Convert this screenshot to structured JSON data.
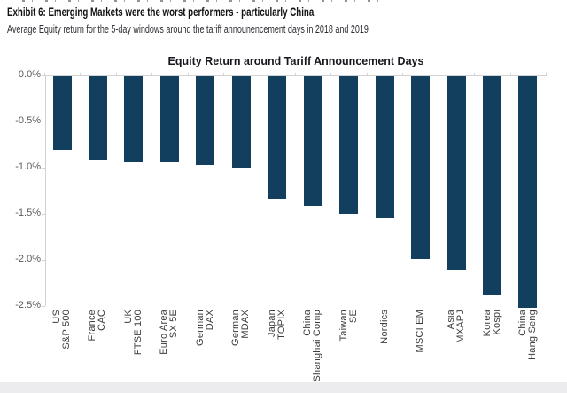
{
  "header": {
    "title": "Exhibit 6: Emerging Markets were the worst performers - particularly China",
    "subtitle": "Average Equity return for the 5-day windows around the tariff announencement days in 2018 and 2019"
  },
  "chart_data": {
    "type": "bar",
    "title": "Equity Return around Tariff Announcement Days",
    "categories": [
      [
        "US",
        "S&P 500"
      ],
      [
        "France",
        "CAC"
      ],
      [
        "UK",
        "FTSE 100"
      ],
      [
        "Euro Area",
        "SX 5E"
      ],
      [
        "German",
        "DAX"
      ],
      [
        "German",
        "MDAX"
      ],
      [
        "Japan",
        "TOPIX"
      ],
      [
        "China",
        "Shanghai Comp"
      ],
      [
        "Taiwan",
        "SE"
      ],
      [
        "Nordics"
      ],
      [
        "MSCI EM"
      ],
      [
        "Asia",
        "MXAPJ"
      ],
      [
        "Korea",
        "Kospi"
      ],
      [
        "China",
        "Hang Seng"
      ]
    ],
    "values": [
      -0.8,
      -0.9,
      -0.93,
      -0.93,
      -0.96,
      -0.99,
      -1.33,
      -1.4,
      -1.49,
      -1.54,
      -1.98,
      -2.1,
      -2.37,
      -2.51
    ],
    "unit": "percent",
    "xlabel": "",
    "ylabel": "",
    "ylim": [
      -2.5,
      0
    ],
    "ytick_labels": [
      "0.0%",
      "-0.5%",
      "-1.0%",
      "-1.5%",
      "-2.0%",
      "-2.5%"
    ],
    "grid": false,
    "legend": "none",
    "bar_color": "#123f5e",
    "axis_color": "#d2d2d6",
    "ytick_color": "#595959",
    "xtick_color": "#3c3c3c"
  }
}
